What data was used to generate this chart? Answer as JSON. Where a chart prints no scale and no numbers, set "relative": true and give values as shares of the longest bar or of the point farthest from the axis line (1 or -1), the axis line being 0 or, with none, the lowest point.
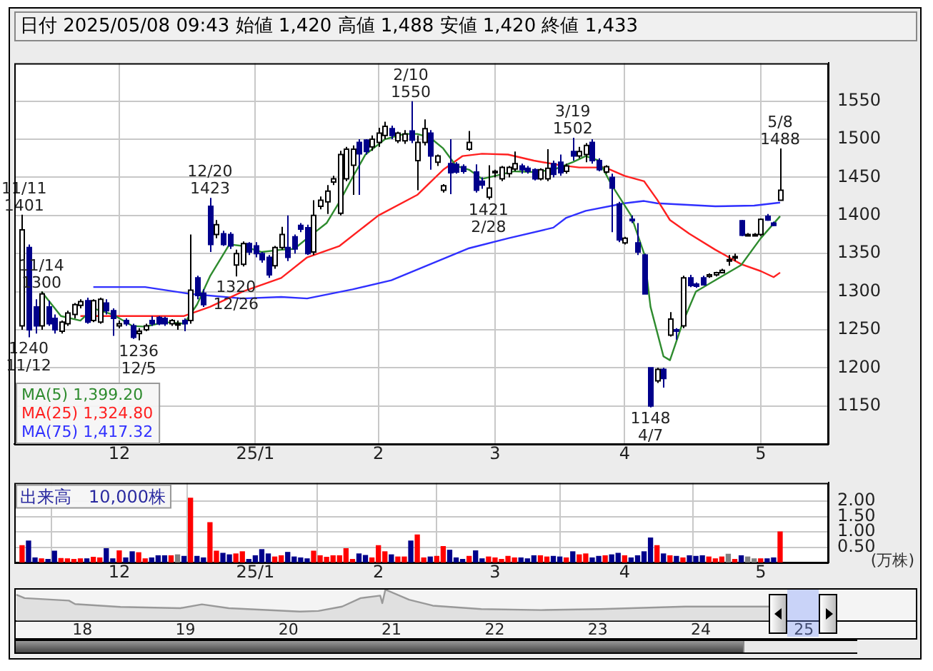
{
  "chart_data": [
    {
      "type": "candlestick",
      "title": "日付 2025/05/08 09:43 始値 1,420 高値 1,488 安値 1,420 終値 1,433",
      "colors": [
        "#ffffff",
        "#00008b",
        "#00008b",
        "#ffffff",
        "#00008b",
        "#00008b",
        "#ffffff",
        "#ffffff",
        "#ffffff",
        "#ffffff",
        "#00008b",
        "#ffffff",
        "#ffffff",
        "#00008b",
        "#00008b",
        "#ffffff",
        "#00008b",
        "#00008b",
        "#ffffff",
        "#ffffff",
        "#00008b",
        "#00008b",
        "#00008b",
        "#ffffff",
        "#ffffff",
        "#00008b",
        "#ffffff",
        "#00008b",
        "#00008b",
        "#00008b",
        "#ffffff",
        "#00008b",
        "#00008b",
        "#ffffff",
        "#ffffff",
        "#00008b",
        "#00008b",
        "#00008b",
        "#00008b",
        "#ffffff",
        "#ffffff",
        "#00008b",
        "#00008b",
        "#00008b",
        "#00008b",
        "#ffffff",
        "#ffffff",
        "#ffffff",
        "#ffffff",
        "#ffffff",
        "#ffffff",
        "#ffffff",
        "#00008b",
        "#00008b",
        "#ffffff",
        "#ffffff",
        "#ffffff",
        "#00008b",
        "#ffffff",
        "#ffffff",
        "#00008b",
        "#ffffff",
        "#ffffff",
        "#00008b",
        "#ffffff",
        "#ffffff",
        "#00008b",
        "#00008b",
        "#00008b",
        "#ffffff",
        "#00008b",
        "#00008b",
        "#ffffff",
        "#ffffff",
        "#ffffff",
        "#ffffff",
        "#ffffff",
        "#00008b",
        "#00008b",
        "#00008b",
        "#ffffff",
        "#ffffff",
        "#00008b",
        "#00008b",
        "#ffffff",
        "#00008b",
        "#ffffff",
        "#ffffff",
        "#00008b",
        "#00008b",
        "#ffffff",
        "#00008b",
        "#00008b",
        "#ffffff",
        "#00008b",
        "#00008b",
        "#00008b",
        "#00008b",
        "#ffffff",
        "#00008b",
        "#ffffff",
        "#00008b",
        "#ffffff",
        "#00008b",
        "#00008b",
        "#00008b",
        "#ffffff",
        "#ffffff",
        "#ffffff",
        "#ffffff",
        "#ffffff",
        "#00008b",
        "#ffffff",
        "#ffffff",
        "#ffffff",
        "#00008b",
        "#00008b",
        "#ffffff",
        null,
        null,
        null,
        null,
        null,
        null,
        null
      ],
      "categories": [
        null,
        null,
        null,
        null,
        null,
        null,
        null,
        null,
        null,
        null,
        null,
        null,
        null,
        null,
        null,
        "12",
        null,
        null,
        null,
        null,
        null,
        null,
        null,
        null,
        null,
        null,
        null,
        null,
        null,
        null,
        null,
        null,
        null,
        null,
        null,
        null,
        "25/1",
        null,
        null,
        null,
        null,
        null,
        null,
        null,
        null,
        null,
        null,
        null,
        null,
        null,
        null,
        null,
        null,
        null,
        null,
        "2",
        null,
        null,
        null,
        null,
        null,
        null,
        null,
        null,
        null,
        null,
        null,
        null,
        null,
        null,
        null,
        null,
        null,
        "3",
        null,
        null,
        null,
        null,
        null,
        null,
        null,
        null,
        null,
        null,
        null,
        null,
        null,
        null,
        null,
        null,
        null,
        null,
        null,
        "4",
        null,
        null,
        null,
        null,
        null,
        null,
        null,
        null,
        null,
        null,
        null,
        null,
        null,
        null,
        null,
        null,
        null,
        null,
        null,
        null,
        "5",
        null,
        null,
        null,
        null,
        null,
        null,
        null,
        null,
        null,
        null
      ],
      "ohlc": [
        [
          1255,
          1401,
          1250,
          1381
        ],
        [
          1358,
          1362,
          1240,
          1250
        ],
        [
          1280,
          1290,
          1245,
          1255
        ],
        [
          1255,
          1300,
          1250,
          1297
        ],
        [
          1280,
          1288,
          1255,
          1258
        ],
        [
          1265,
          1270,
          1245,
          1250
        ],
        [
          1248,
          1262,
          1245,
          1260
        ],
        [
          1258,
          1275,
          1255,
          1272
        ],
        [
          1270,
          1285,
          1265,
          1283
        ],
        [
          1282,
          1290,
          1278,
          1287
        ],
        [
          1288,
          1292,
          1258,
          1260
        ],
        [
          1262,
          1290,
          1260,
          1288
        ],
        [
          1260,
          1292,
          1258,
          1290
        ],
        [
          1285,
          1290,
          1270,
          1275
        ],
        [
          1275,
          1278,
          1242,
          1265
        ],
        [
          1255,
          1262,
          1252,
          1258
        ],
        [
          1262,
          1265,
          1255,
          1258
        ],
        [
          1255,
          1258,
          1238,
          1240
        ],
        [
          1245,
          1252,
          1236,
          1248
        ],
        [
          1250,
          1258,
          1248,
          1255
        ],
        [
          1262,
          1268,
          1255,
          1258
        ],
        [
          1266,
          1268,
          1256,
          1258
        ],
        [
          1265,
          1267,
          1255,
          1258
        ],
        [
          1258,
          1264,
          1255,
          1262
        ],
        [
          1258,
          1262,
          1250,
          1258
        ],
        [
          1262,
          1265,
          1248,
          1258
        ],
        [
          1262,
          1375,
          1258,
          1302
        ],
        [
          1318,
          1321,
          1290,
          1295
        ],
        [
          1298,
          1303,
          1280,
          1283
        ],
        [
          1412,
          1423,
          1352,
          1362
        ],
        [
          1375,
          1394,
          1370,
          1388
        ],
        [
          1376,
          1380,
          1360,
          1362
        ],
        [
          1375,
          1378,
          1356,
          1360
        ],
        [
          1335,
          1355,
          1320,
          1350
        ],
        [
          1336,
          1366,
          1333,
          1363
        ],
        [
          1363,
          1365,
          1348,
          1352
        ],
        [
          1360,
          1365,
          1345,
          1350
        ],
        [
          1350,
          1352,
          1338,
          1342
        ],
        [
          1345,
          1348,
          1318,
          1322
        ],
        [
          1334,
          1360,
          1330,
          1358
        ],
        [
          1358,
          1385,
          1355,
          1375
        ],
        [
          1358,
          1400,
          1340,
          1345
        ],
        [
          1372,
          1375,
          1350,
          1356
        ],
        [
          1387,
          1390,
          1378,
          1382
        ],
        [
          1384,
          1388,
          1348,
          1350
        ],
        [
          1352,
          1420,
          1348,
          1400
        ],
        [
          1412,
          1425,
          1408,
          1420
        ],
        [
          1418,
          1440,
          1402,
          1432
        ],
        [
          1444,
          1452,
          1440,
          1448
        ],
        [
          1403,
          1485,
          1400,
          1480
        ],
        [
          1448,
          1490,
          1445,
          1487
        ],
        [
          1466,
          1492,
          1427,
          1487
        ],
        [
          1496,
          1500,
          1427,
          1481
        ],
        [
          1499,
          1500,
          1480,
          1484
        ],
        [
          1490,
          1505,
          1485,
          1500
        ],
        [
          1496,
          1515,
          1490,
          1508
        ],
        [
          1505,
          1523,
          1500,
          1517
        ],
        [
          1514,
          1518,
          1500,
          1505
        ],
        [
          1498,
          1510,
          1495,
          1508
        ],
        [
          1498,
          1512,
          1494,
          1507
        ],
        [
          1511,
          1550,
          1495,
          1499
        ],
        [
          1472,
          1505,
          1433,
          1496
        ],
        [
          1496,
          1526,
          1492,
          1514
        ],
        [
          1508,
          1512,
          1460,
          1478
        ],
        [
          1470,
          1480,
          1465,
          1478
        ],
        [
          1433,
          1441,
          1430,
          1439
        ],
        [
          1468,
          1500,
          1428,
          1456
        ],
        [
          1467,
          1470,
          1455,
          1457
        ],
        [
          1464,
          1467,
          1455,
          1458
        ],
        [
          1487,
          1511,
          1485,
          1496
        ],
        [
          1457,
          1467,
          1430,
          1433
        ],
        [
          1445,
          1450,
          1435,
          1440
        ],
        [
          1424,
          1466,
          1421,
          1436
        ],
        [
          1456,
          1460,
          1450,
          1458
        ],
        [
          1448,
          1465,
          1445,
          1463
        ],
        [
          1455,
          1465,
          1450,
          1463
        ],
        [
          1461,
          1484,
          1458,
          1468
        ],
        [
          1465,
          1468,
          1455,
          1460
        ],
        [
          1462,
          1465,
          1455,
          1458
        ],
        [
          1460,
          1462,
          1446,
          1448
        ],
        [
          1448,
          1462,
          1446,
          1460
        ],
        [
          1448,
          1487,
          1445,
          1462
        ],
        [
          1468,
          1472,
          1450,
          1454
        ],
        [
          1470,
          1480,
          1452,
          1456
        ],
        [
          1458,
          1468,
          1455,
          1465
        ],
        [
          1484,
          1502,
          1472,
          1478
        ],
        [
          1478,
          1490,
          1475,
          1484
        ],
        [
          1480,
          1495,
          1470,
          1492
        ],
        [
          1496,
          1500,
          1468,
          1472
        ],
        [
          1472,
          1475,
          1458,
          1460
        ],
        [
          1457,
          1466,
          1455,
          1464
        ],
        [
          1450,
          1455,
          1378,
          1436
        ],
        [
          1415,
          1418,
          1365,
          1368
        ],
        [
          1364,
          1372,
          1362,
          1370
        ],
        [
          1395,
          1400,
          1390,
          1394
        ],
        [
          1364,
          1390,
          1348,
          1352
        ],
        [
          1348,
          1350,
          1297,
          1297
        ],
        [
          1200,
          1200,
          1148,
          1150
        ],
        [
          1183,
          1200,
          1180,
          1198
        ],
        [
          1198,
          1200,
          1174,
          1186
        ],
        [
          1243,
          1273,
          1241,
          1264
        ],
        [
          1250,
          1252,
          1237,
          1249
        ],
        [
          1255,
          1321,
          1252,
          1318
        ],
        [
          1318,
          1322,
          1306,
          1308
        ],
        [
          1310,
          1312,
          1305,
          1307
        ],
        [
          1318,
          1321,
          1308,
          1309
        ],
        [
          1320,
          1324,
          1318,
          1322
        ],
        [
          1322,
          1326,
          1320,
          1325
        ],
        [
          1325,
          1330,
          1324,
          1328
        ],
        [
          1342,
          1348,
          1334,
          1342
        ],
        [
          1345,
          1350,
          1340,
          1346
        ],
        [
          1393,
          1394,
          1373,
          1374
        ],
        [
          1375,
          1377,
          1373,
          1375
        ],
        [
          1375,
          1377,
          1373,
          1375
        ],
        [
          1375,
          1396,
          1373,
          1395
        ],
        [
          1399,
          1402,
          1393,
          1394
        ],
        [
          1390,
          1392,
          1386,
          1387
        ],
        [
          1420,
          1488,
          1420,
          1433
        ],
        null,
        null,
        null,
        null,
        null,
        null,
        null
      ],
      "series": [
        {
          "type": "line",
          "name": "MA(5) 1,399.20",
          "color": "#2e8b2e",
          "values": [
            null,
            null,
            null,
            1300,
            null,
            null,
            1268,
            null,
            null,
            1262,
            null,
            1278,
            null,
            null,
            1270,
            null,
            null,
            1255,
            null,
            1254,
            null,
            null,
            1260,
            null,
            null,
            1258,
            null,
            1283,
            null,
            1320,
            null,
            null,
            1362,
            null,
            1360,
            null,
            null,
            1352,
            null,
            null,
            1355,
            null,
            1356,
            null,
            1370,
            null,
            null,
            1390,
            null,
            1418,
            null,
            1450,
            null,
            1480,
            null,
            null,
            1500,
            null,
            null,
            1507,
            null,
            1507,
            null,
            1502,
            null,
            1488,
            null,
            1465,
            null,
            1460,
            null,
            1448,
            null,
            1452,
            null,
            null,
            1458,
            null,
            null,
            1457,
            null,
            null,
            1460,
            null,
            null,
            1470,
            null,
            1478,
            null,
            1472,
            null,
            1440,
            null,
            null,
            1400,
            null,
            1350,
            1280,
            null,
            1215,
            1210,
            null,
            1260,
            null,
            1300,
            null,
            null,
            1315,
            null,
            null,
            null,
            1335,
            null,
            null,
            1370,
            null,
            null,
            1399,
            null,
            null,
            null,
            null,
            null,
            null,
            null
          ]
        },
        {
          "type": "line",
          "name": "MA(25) 1,324.80",
          "color": "#ff2020",
          "values": [
            null,
            null,
            null,
            null,
            null,
            null,
            null,
            null,
            null,
            1268,
            null,
            null,
            null,
            null,
            null,
            null,
            null,
            null,
            1268,
            null,
            null,
            null,
            null,
            null,
            null,
            1268,
            null,
            null,
            null,
            1280,
            null,
            null,
            null,
            null,
            1300,
            null,
            null,
            null,
            null,
            null,
            1318,
            null,
            null,
            null,
            1345,
            null,
            null,
            null,
            null,
            1360,
            null,
            null,
            null,
            null,
            null,
            1400,
            null,
            null,
            null,
            null,
            null,
            1427,
            null,
            null,
            null,
            1460,
            null,
            null,
            1478,
            null,
            null,
            1481,
            null,
            null,
            null,
            1480,
            null,
            null,
            null,
            1472,
            null,
            null,
            null,
            1466,
            null,
            null,
            1463,
            null,
            null,
            null,
            1463,
            null,
            null,
            1452,
            null,
            null,
            1445,
            null,
            1421,
            null,
            1394,
            null,
            null,
            1376,
            null,
            null,
            null,
            1355,
            null,
            null,
            null,
            1336,
            null,
            null,
            1327,
            null,
            1319,
            1325,
            null,
            null,
            null,
            null,
            null,
            null,
            null
          ]
        },
        {
          "type": "line",
          "name": "MA(75) 1,417.32",
          "color": "#3030ff",
          "values": [
            null,
            null,
            null,
            null,
            null,
            null,
            null,
            null,
            null,
            null,
            null,
            1306,
            null,
            null,
            null,
            null,
            null,
            null,
            null,
            1306,
            null,
            null,
            null,
            null,
            null,
            null,
            1297,
            null,
            null,
            null,
            null,
            null,
            null,
            null,
            1291,
            null,
            null,
            null,
            null,
            null,
            1293,
            null,
            null,
            null,
            1291,
            null,
            null,
            null,
            null,
            null,
            null,
            1303,
            null,
            null,
            null,
            null,
            null,
            1315,
            null,
            null,
            null,
            null,
            null,
            1336,
            null,
            null,
            null,
            null,
            null,
            1357,
            null,
            null,
            null,
            null,
            null,
            1370,
            null,
            null,
            null,
            null,
            null,
            null,
            1384,
            null,
            1397,
            null,
            null,
            1406,
            null,
            null,
            null,
            null,
            null,
            1416,
            null,
            null,
            1419,
            null,
            1416,
            null,
            null,
            null,
            null,
            null,
            null,
            null,
            null,
            1412,
            null,
            null,
            null,
            null,
            null,
            1413,
            null,
            null,
            null,
            1417,
            null,
            null,
            null,
            null,
            null,
            null,
            null
          ]
        }
      ],
      "annotations": [
        {
          "text": "11/11\n1401",
          "y": 1401
        },
        {
          "text": "1240\n11/12",
          "y": 1240
        },
        {
          "text": "11/14\n1300",
          "y": 1300
        },
        {
          "text": "1236\n12/5",
          "y": 1236
        },
        {
          "text": "12/20\n1423",
          "y": 1423
        },
        {
          "text": "1320\n12/26",
          "y": 1320
        },
        {
          "text": "2/10\n1550",
          "y": 1550
        },
        {
          "text": "1421\n2/28",
          "y": 1421
        },
        {
          "text": "3/19\n1502",
          "y": 1502
        },
        {
          "text": "1148\n4/7",
          "y": 1148
        },
        {
          "text": "5/8\n1488",
          "y": 1488
        }
      ],
      "ylim": [
        1100,
        1600
      ],
      "yticks": [
        1150,
        1200,
        1250,
        1300,
        1350,
        1400,
        1450,
        1500,
        1550
      ],
      "grid": true,
      "legend": "bottom left"
    },
    {
      "type": "bar",
      "title": "出来高　10,000株",
      "ylabel": "(万株)",
      "categories": [
        null,
        null,
        null,
        null,
        null,
        null,
        null,
        null,
        null,
        null,
        null,
        null,
        null,
        null,
        null,
        "12",
        null,
        null,
        null,
        null,
        null,
        null,
        null,
        null,
        null,
        null,
        null,
        null,
        null,
        null,
        null,
        null,
        null,
        null,
        null,
        null,
        "25/1",
        null,
        null,
        null,
        null,
        null,
        null,
        null,
        null,
        null,
        null,
        null,
        null,
        null,
        null,
        null,
        null,
        null,
        null,
        "2",
        null,
        null,
        null,
        null,
        null,
        null,
        null,
        null,
        null,
        null,
        null,
        null,
        null,
        null,
        null,
        null,
        null,
        "3",
        null,
        null,
        null,
        null,
        null,
        null,
        null,
        null,
        null,
        null,
        null,
        null,
        null,
        null,
        null,
        null,
        null,
        null,
        null,
        "4",
        null,
        null,
        null,
        null,
        null,
        null,
        null,
        null,
        null,
        null,
        null,
        null,
        null,
        null,
        null,
        null,
        null,
        null,
        null,
        null,
        "5",
        null,
        null,
        null,
        null,
        null,
        null,
        null,
        null,
        null,
        null
      ],
      "values": [
        0.55,
        0.7,
        0.15,
        0.12,
        0.1,
        0.37,
        0.13,
        0.12,
        0.1,
        0.12,
        0.12,
        0.17,
        0.15,
        0.45,
        0.12,
        0.38,
        0.15,
        0.35,
        0.32,
        0.12,
        0.15,
        0.22,
        0.22,
        0.22,
        0.25,
        0.2,
        2.1,
        0.2,
        0.15,
        1.3,
        0.37,
        0.3,
        0.25,
        0.28,
        0.35,
        0.1,
        0.22,
        0.42,
        0.28,
        0.18,
        0.22,
        0.33,
        0.18,
        0.15,
        0.12,
        0.37,
        0.22,
        0.17,
        0.22,
        0.22,
        0.45,
        0.1,
        0.28,
        0.23,
        0.15,
        0.55,
        0.35,
        0.25,
        0.18,
        0.18,
        0.7,
        0.9,
        0.15,
        0.18,
        0.2,
        0.52,
        0.4,
        0.15,
        0.1,
        0.2,
        0.38,
        0.12,
        0.18,
        0.15,
        0.1,
        0.2,
        0.15,
        0.15,
        0.12,
        0.22,
        0.22,
        0.18,
        0.2,
        0.18,
        0.15,
        0.35,
        0.25,
        0.28,
        0.15,
        0.2,
        0.22,
        0.25,
        0.3,
        0.22,
        0.15,
        0.22,
        0.35,
        0.8,
        0.55,
        0.28,
        0.22,
        0.2,
        0.15,
        0.22,
        0.2,
        0.22,
        0.18,
        0.12,
        0.18,
        0.27,
        0.1,
        0.22,
        0.18,
        0.12,
        0.12,
        0.12,
        0.15,
        1.0,
        null,
        null,
        null,
        null,
        null,
        null,
        null
      ],
      "colors": [
        "#ff0000",
        "#00008b",
        "#00008b",
        "#ff0000",
        "#00008b",
        "#00008b",
        "#ff0000",
        "#ff0000",
        "#ff0000",
        "#ff0000",
        "#00008b",
        "#ff0000",
        "#ff0000",
        "#00008b",
        "#00008b",
        "#ff0000",
        "#00008b",
        "#00008b",
        "#ff0000",
        "#ff0000",
        "#00008b",
        "#00008b",
        "#00008b",
        "#ff0000",
        "#808080",
        "#00008b",
        "#ff0000",
        "#00008b",
        "#00008b",
        "#ff0000",
        "#ff0000",
        "#00008b",
        "#00008b",
        "#ff0000",
        "#ff0000",
        "#00008b",
        "#00008b",
        "#00008b",
        "#00008b",
        "#ff0000",
        "#ff0000",
        "#00008b",
        "#00008b",
        "#00008b",
        "#00008b",
        "#ff0000",
        "#ff0000",
        "#ff0000",
        "#ff0000",
        "#ff0000",
        "#ff0000",
        "#ff0000",
        "#00008b",
        "#00008b",
        "#ff0000",
        "#ff0000",
        "#ff0000",
        "#00008b",
        "#ff0000",
        "#ff0000",
        "#00008b",
        "#ff0000",
        "#ff0000",
        "#00008b",
        "#ff0000",
        "#ff0000",
        "#00008b",
        "#00008b",
        "#00008b",
        "#ff0000",
        "#00008b",
        "#00008b",
        "#ff0000",
        "#ff0000",
        "#ff0000",
        "#ff0000",
        "#ff0000",
        "#00008b",
        "#00008b",
        "#00008b",
        "#ff0000",
        "#ff0000",
        "#00008b",
        "#00008b",
        "#ff0000",
        "#00008b",
        "#ff0000",
        "#ff0000",
        "#00008b",
        "#00008b",
        "#ff0000",
        "#00008b",
        "#00008b",
        "#ff0000",
        "#00008b",
        "#00008b",
        "#00008b",
        "#00008b",
        "#ff0000",
        "#00008b",
        "#ff0000",
        "#00008b",
        "#ff0000",
        "#00008b",
        "#00008b",
        "#00008b",
        "#ff0000",
        "#ff0000",
        "#ff0000",
        "#808080",
        "#ff0000",
        "#00008b",
        "#808080",
        "#808080",
        "#ff0000",
        "#00008b",
        "#00008b",
        "#ff0000",
        null,
        null,
        null,
        null,
        null,
        null,
        null
      ],
      "ylim": [
        0,
        2.6
      ],
      "yticks": [
        {
          "value": 0.5,
          "label": "0.50"
        },
        {
          "value": 1,
          "label": "1.00"
        },
        {
          "value": 1.5,
          "label": "1.50"
        },
        {
          "value": 2,
          "label": "2.00"
        }
      ],
      "grid": true
    },
    {
      "type": "area",
      "relative": true,
      "color": "#999999",
      "x": [
        17.36,
        17.44,
        17.87,
        17.93,
        18.37,
        18.95,
        19.16,
        19.42,
        20.11,
        20.29,
        20.52,
        20.7,
        20.89,
        20.91,
        20.94,
        21.17,
        21.4,
        21.87,
        22.45,
        23.03,
        23.85,
        24.66
      ],
      "values": [
        0.84,
        0.73,
        0.65,
        0.54,
        0.45,
        0.41,
        0.53,
        0.41,
        0.3,
        0.32,
        0.46,
        0.73,
        0.81,
        0.57,
        1,
        0.68,
        0.49,
        0.38,
        0.35,
        0.38,
        0.46,
        0.46
      ],
      "xlim": [
        17.34,
        26.1
      ],
      "xticks": [
        18,
        19,
        20,
        21,
        22,
        23,
        24,
        25
      ]
    }
  ]
}
